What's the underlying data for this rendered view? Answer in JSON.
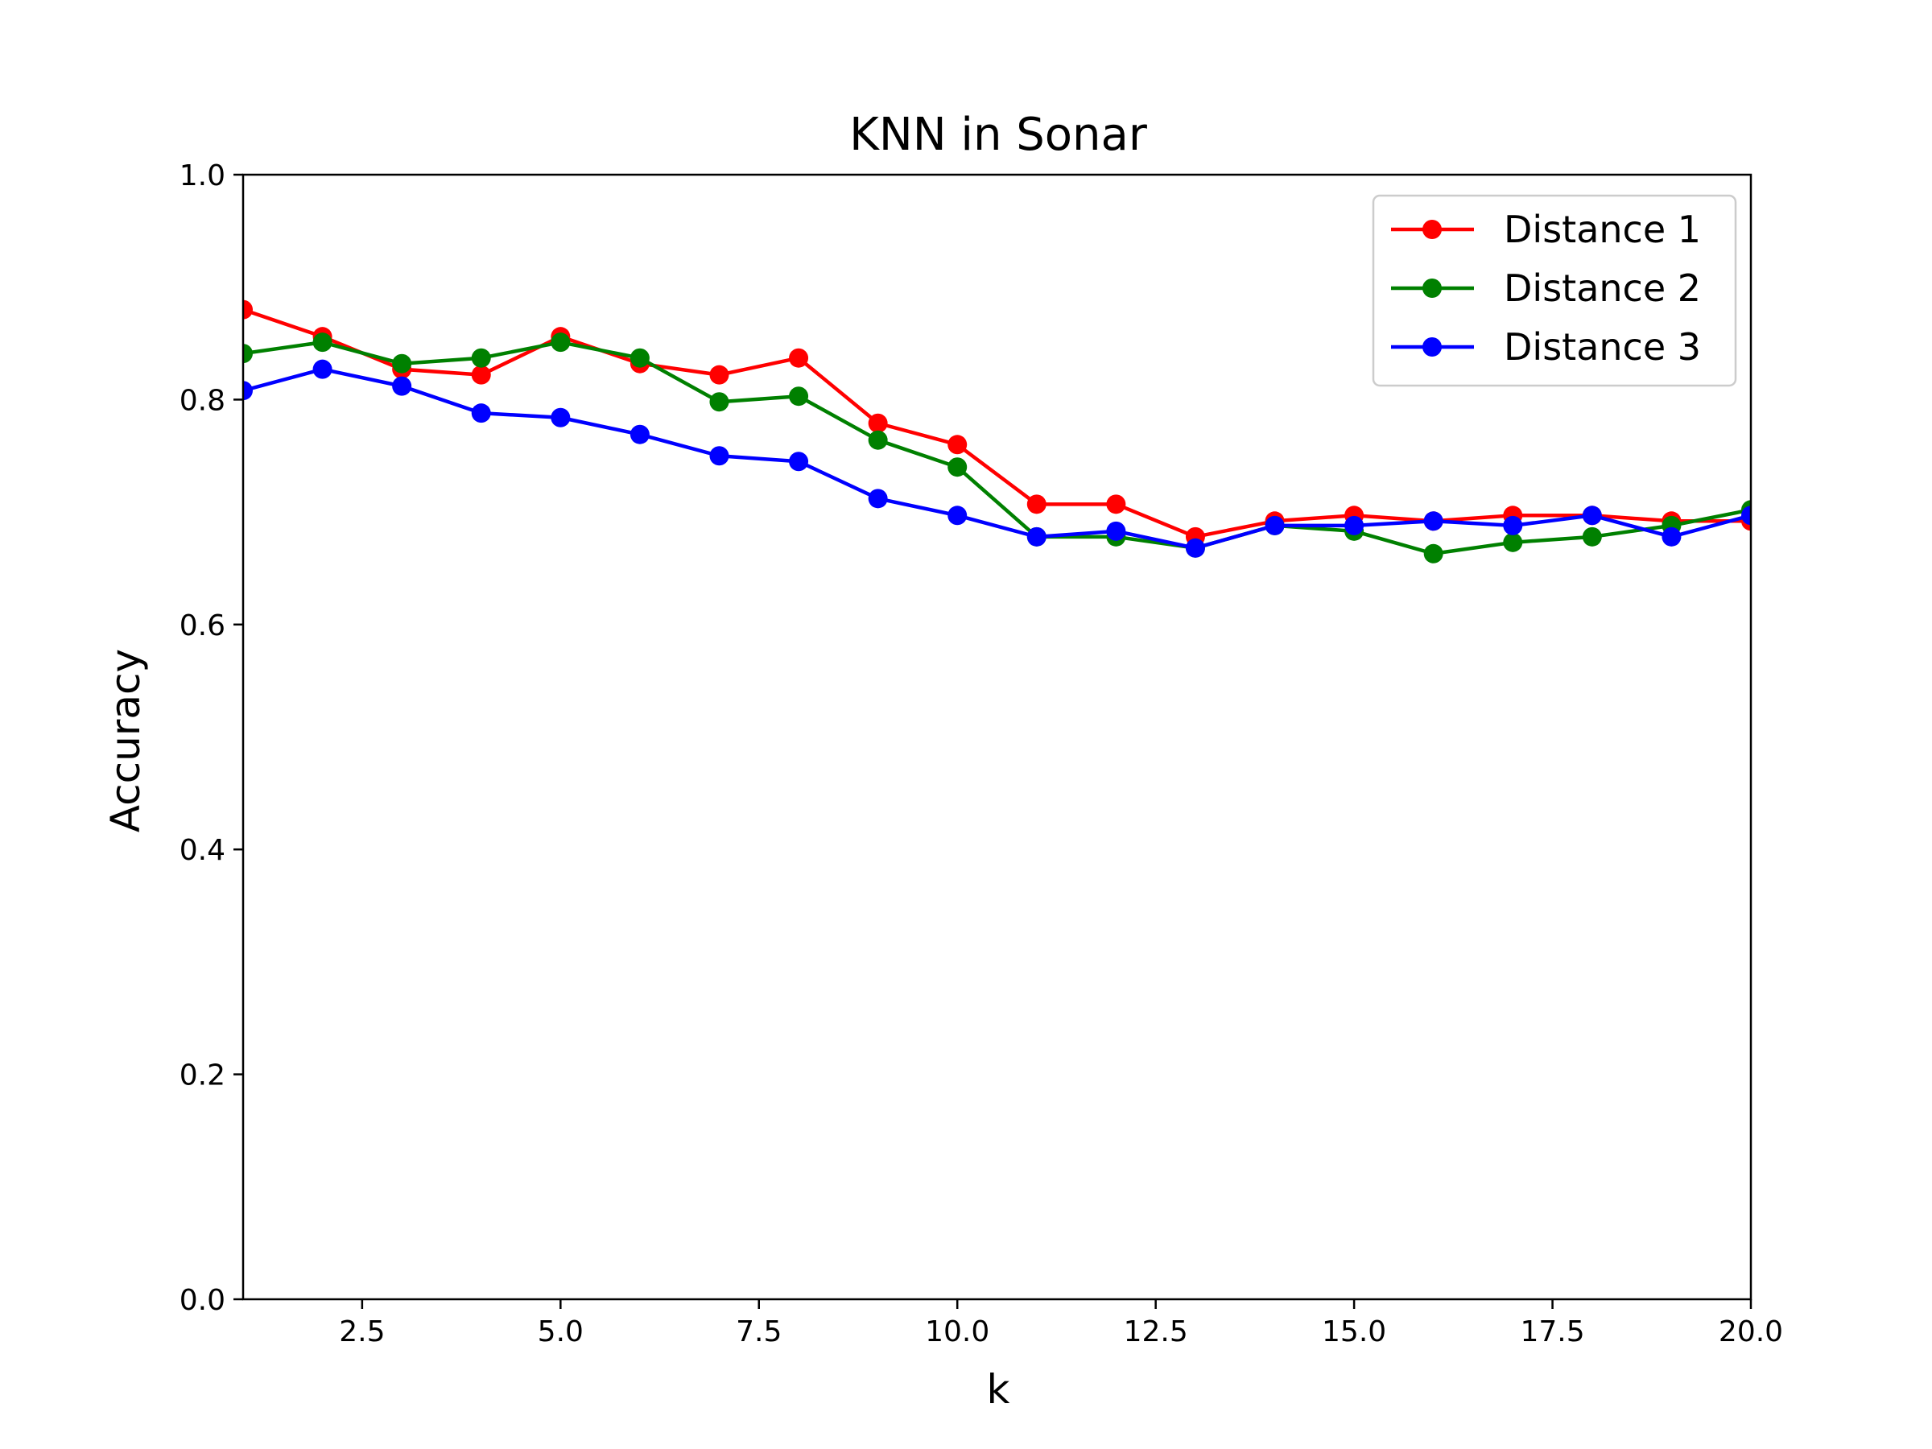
{
  "chart_data": {
    "type": "line",
    "title": "KNN in Sonar",
    "xlabel": "k",
    "ylabel": "Accuracy",
    "xlim": [
      1,
      20
    ],
    "ylim": [
      0.0,
      1.0
    ],
    "xticks": [
      "2.5",
      "5.0",
      "7.5",
      "10.0",
      "12.5",
      "15.0",
      "17.5",
      "20.0"
    ],
    "yticks": [
      "0.0",
      "0.2",
      "0.4",
      "0.6",
      "0.8",
      "1.0"
    ],
    "grid": false,
    "legend_position": "top-right",
    "x": [
      1,
      2,
      3,
      4,
      5,
      6,
      7,
      8,
      9,
      10,
      11,
      12,
      13,
      14,
      15,
      16,
      17,
      18,
      19,
      20
    ],
    "series": [
      {
        "name": "Distance 1",
        "color": "#ff0000",
        "marker": "circle",
        "values": [
          0.88,
          0.856,
          0.827,
          0.822,
          0.856,
          0.832,
          0.822,
          0.837,
          0.779,
          0.76,
          0.707,
          0.707,
          0.678,
          0.692,
          0.697,
          0.692,
          0.697,
          0.697,
          0.692,
          0.692
        ]
      },
      {
        "name": "Distance 2",
        "color": "#008000",
        "marker": "circle",
        "values": [
          0.841,
          0.851,
          0.832,
          0.837,
          0.851,
          0.837,
          0.798,
          0.803,
          0.764,
          0.74,
          0.678,
          0.678,
          0.668,
          0.688,
          0.683,
          0.663,
          0.673,
          0.678,
          0.688,
          0.702
        ]
      },
      {
        "name": "Distance 3",
        "color": "#0000ff",
        "marker": "circle",
        "values": [
          0.808,
          0.827,
          0.812,
          0.788,
          0.784,
          0.769,
          0.75,
          0.745,
          0.712,
          0.697,
          0.678,
          0.683,
          0.668,
          0.688,
          0.688,
          0.692,
          0.688,
          0.697,
          0.678,
          0.697
        ]
      }
    ]
  }
}
